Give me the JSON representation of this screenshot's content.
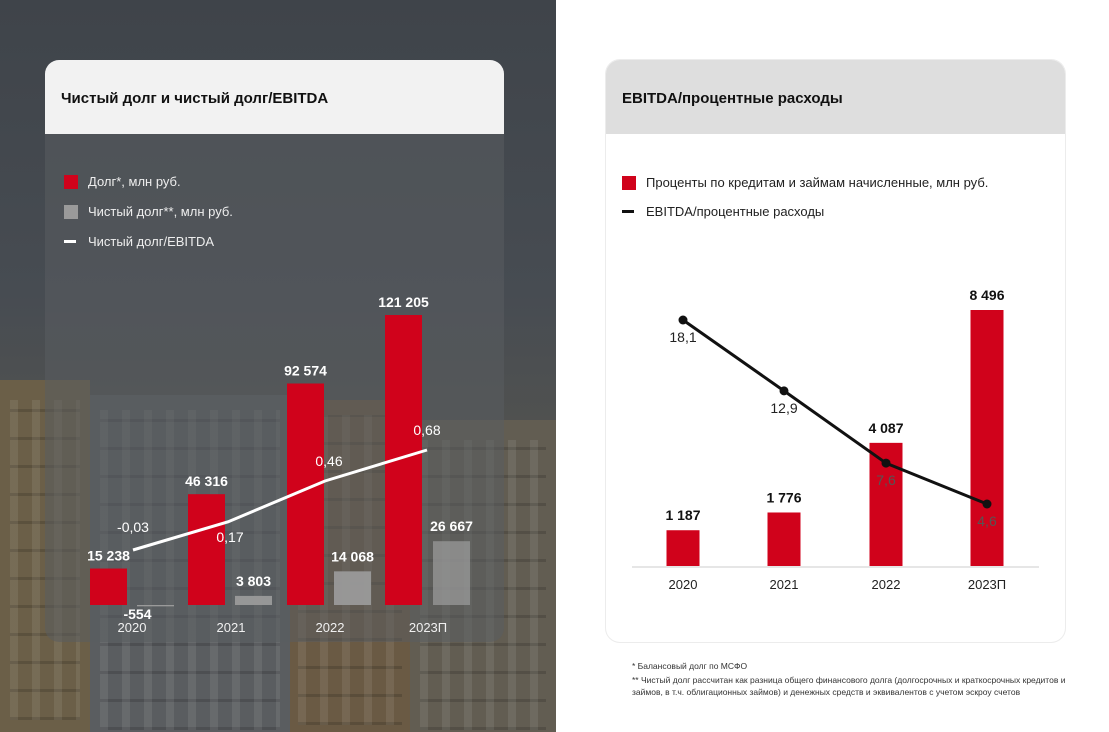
{
  "left_panel": {
    "title": "Чистый долг и чистый долг/EBITDA",
    "legend": [
      {
        "label": "Долг*, млн руб.",
        "color": "#d0021b",
        "kind": "box"
      },
      {
        "label": "Чистый долг**, млн руб.",
        "color": "#9a9a9a",
        "kind": "box"
      },
      {
        "label": "Чистый долг/EBITDA",
        "color": "#ffffff",
        "kind": "line"
      }
    ]
  },
  "right_panel": {
    "title": "EBITDA/процентные расходы",
    "legend": [
      {
        "label": "Проценты по кредитам и займам начисленные, млн руб.",
        "color": "#d0021b",
        "kind": "box"
      },
      {
        "label": "EBITDA/процентные расходы",
        "color": "#111111",
        "kind": "line"
      }
    ]
  },
  "chart_data": [
    {
      "type": "bar",
      "title": "Чистый долг и чистый долг/EBITDA",
      "categories": [
        "2020",
        "2021",
        "2022",
        "2023П"
      ],
      "series": [
        {
          "name": "Долг*, млн руб.",
          "values": [
            15238,
            46316,
            92574,
            121205
          ],
          "labels": [
            "15 238",
            "46 316",
            "92 574",
            "121 205"
          ],
          "color": "#d0021b"
        },
        {
          "name": "Чистый долг**, млн руб.",
          "values": [
            -554,
            3803,
            14068,
            26667
          ],
          "labels": [
            "-554",
            "3 803",
            "14 068",
            "26 667"
          ],
          "color": "#9a9a9a"
        },
        {
          "name": "Чистый долг/EBITDA",
          "type": "line",
          "values": [
            -0.03,
            0.17,
            0.46,
            0.68
          ],
          "labels": [
            "-0,03",
            "0,17",
            "0,46",
            "0,68"
          ],
          "color": "#ffffff"
        }
      ]
    },
    {
      "type": "bar",
      "title": "EBITDA/процентные расходы",
      "categories": [
        "2020",
        "2021",
        "2022",
        "2023П"
      ],
      "series": [
        {
          "name": "Проценты по кредитам и займам начисленные, млн руб.",
          "values": [
            1187,
            1776,
            4087,
            8496
          ],
          "labels": [
            "1 187",
            "1 776",
            "4 087",
            "8 496"
          ],
          "color": "#d0021b"
        },
        {
          "name": "EBITDA/процентные расходы",
          "type": "line",
          "values": [
            18.1,
            12.9,
            7.6,
            4.6
          ],
          "labels": [
            "18,1",
            "12,9",
            "7,6",
            "4,6"
          ],
          "color": "#111111"
        }
      ]
    }
  ],
  "footnotes": [
    "* Балансовый долг по МСФО",
    "** Чистый долг рассчитан как разница общего финансового долга (долгосрочных и краткосрочных кредитов и займов, в т.ч. облигационных займов) и денежных средств и эквивалентов с учетом эскроу счетов"
  ]
}
